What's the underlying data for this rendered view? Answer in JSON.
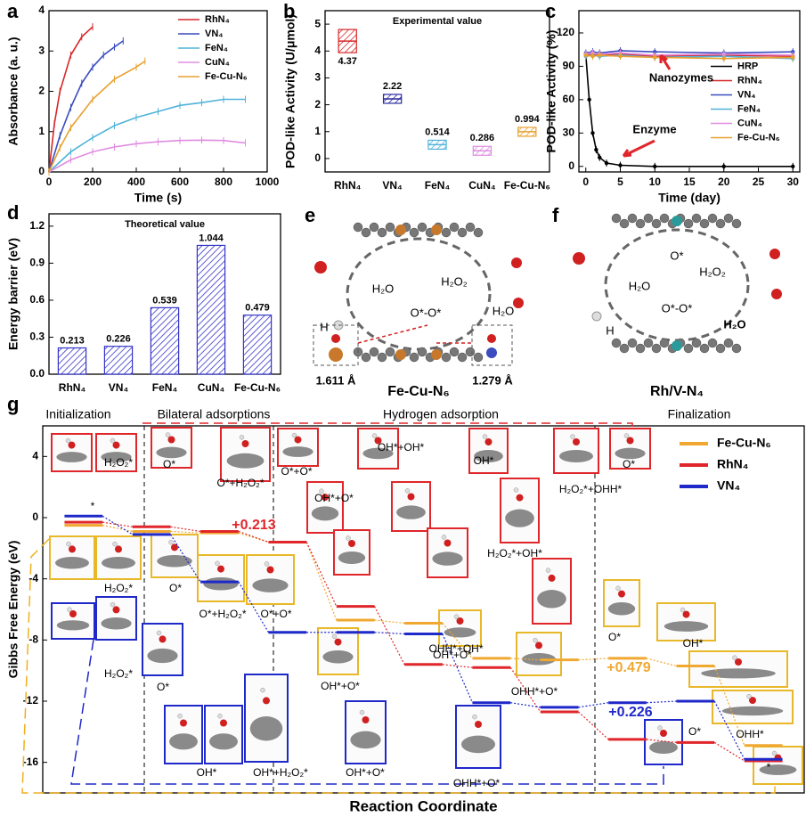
{
  "chart_data": [
    {
      "type": "line",
      "panel_label": "a",
      "xlabel": "Time (s)",
      "ylabel": "Absorbance (a. u.)",
      "xlim": [
        0,
        1000
      ],
      "xticks": [
        0,
        200,
        400,
        600,
        800,
        1000
      ],
      "ylim": [
        0,
        4
      ],
      "yticks": [
        0,
        1,
        2,
        3,
        4
      ],
      "legend": "upper right",
      "series": [
        {
          "name": "RhN₄",
          "color": "#d62728",
          "x": [
            0,
            25,
            50,
            100,
            150,
            200
          ],
          "values": [
            0,
            1.2,
            2.0,
            2.9,
            3.35,
            3.6
          ]
        },
        {
          "name": "VN₄",
          "color": "#3b4cc0",
          "x": [
            0,
            50,
            100,
            150,
            200,
            250,
            300,
            340
          ],
          "values": [
            0,
            0.9,
            1.6,
            2.2,
            2.6,
            2.9,
            3.1,
            3.25
          ]
        },
        {
          "name": "FeN₄",
          "color": "#4fb3d9",
          "x": [
            0,
            100,
            200,
            300,
            400,
            500,
            600,
            700,
            800,
            900
          ],
          "values": [
            0,
            0.5,
            0.85,
            1.15,
            1.35,
            1.5,
            1.65,
            1.72,
            1.8,
            1.8
          ]
        },
        {
          "name": "CuN₄",
          "color": "#e08de0",
          "x": [
            0,
            100,
            200,
            300,
            400,
            500,
            600,
            700,
            800,
            900
          ],
          "values": [
            0,
            0.3,
            0.5,
            0.62,
            0.7,
            0.75,
            0.78,
            0.79,
            0.78,
            0.72
          ]
        },
        {
          "name": "Fe-Cu-N₆",
          "color": "#e8a030",
          "x": [
            0,
            50,
            100,
            200,
            300,
            400,
            440
          ],
          "values": [
            0,
            0.6,
            1.1,
            1.8,
            2.3,
            2.6,
            2.75
          ]
        }
      ]
    },
    {
      "type": "box",
      "panel_label": "b",
      "title": "Experimental value",
      "ylabel": "POD-like Activity (U/μmol)",
      "categories": [
        "RhN₄",
        "VN₄",
        "FeN₄",
        "CuN₄",
        "Fe-Cu-N₆"
      ],
      "values": [
        4.37,
        2.22,
        0.514,
        0.286,
        0.994
      ],
      "colors": [
        "#d62728",
        "#2a2aa0",
        "#4fb3d9",
        "#e08de0",
        "#e8a030"
      ],
      "ylim": [
        -0.5,
        5.5
      ],
      "yticks": [
        0,
        1,
        2,
        3,
        4,
        5
      ]
    },
    {
      "type": "line",
      "panel_label": "c",
      "xlabel": "Time (day)",
      "ylabel": "POD-like Activity (%)",
      "xlim": [
        -1,
        31
      ],
      "xticks": [
        0,
        5,
        10,
        15,
        20,
        25,
        30
      ],
      "ylim": [
        -5,
        140
      ],
      "yticks": [
        0,
        30,
        60,
        90,
        120
      ],
      "legend": "center right",
      "markers": true,
      "annotations": [
        "Nanozymes",
        "Enzyme"
      ],
      "series": [
        {
          "name": "HRP",
          "color": "#000000",
          "x": [
            0,
            0.5,
            1,
            1.5,
            2,
            3,
            5,
            10,
            20,
            30
          ],
          "values": [
            100,
            60,
            30,
            15,
            8,
            3,
            1,
            0,
            0,
            0
          ]
        },
        {
          "name": "RhN₄",
          "color": "#d62728",
          "x": [
            0,
            1,
            2,
            5,
            10,
            20,
            30
          ],
          "values": [
            100,
            101,
            100,
            101,
            99,
            100,
            99
          ]
        },
        {
          "name": "VN₄",
          "color": "#3b4cc0",
          "x": [
            0,
            1,
            2,
            5,
            10,
            20,
            30
          ],
          "values": [
            102,
            103,
            102,
            104,
            103,
            102,
            103
          ]
        },
        {
          "name": "FeN₄",
          "color": "#4fb3d9",
          "x": [
            0,
            1,
            2,
            5,
            10,
            20,
            30
          ],
          "values": [
            99,
            100,
            99,
            100,
            98,
            99,
            97
          ]
        },
        {
          "name": "CuN₄",
          "color": "#e08de0",
          "x": [
            0,
            1,
            2,
            5,
            10,
            20,
            30
          ],
          "values": [
            101,
            102,
            101,
            102,
            100,
            101,
            100
          ]
        },
        {
          "name": "Fe-Cu-N₆",
          "color": "#e8a030",
          "x": [
            0,
            1,
            2,
            5,
            10,
            20,
            30
          ],
          "values": [
            100,
            99,
            100,
            99,
            98,
            97,
            98
          ]
        }
      ]
    },
    {
      "type": "bar",
      "panel_label": "d",
      "title": "Theoretical value",
      "ylabel": "Energy barrier (eV)",
      "categories": [
        "RhN₄",
        "VN₄",
        "FeN₄",
        "CuN₄",
        "Fe-Cu-N₆"
      ],
      "values": [
        0.213,
        0.226,
        0.539,
        1.044,
        0.479
      ],
      "color": "#3535c8",
      "ylim": [
        0,
        1.3
      ],
      "yticks": [
        {
          "value": 0,
          "label": "0.0"
        },
        0.3,
        0.6,
        0.9,
        1.2
      ]
    },
    {
      "type": "energy",
      "panel_label": "g",
      "xlabel": "Reaction Coordinate",
      "ylabel": "Gibbs Free Energy (eV)",
      "xlim": [
        -0.6,
        10.6
      ],
      "ylim": [
        -18,
        6
      ],
      "yticks": [
        4,
        0,
        -4,
        -8,
        -12,
        -16
      ],
      "legend": "upper right",
      "sections": [
        "Initialization",
        "Bilateral adsorptions",
        "Hydrogen adsorption",
        "Finalization"
      ],
      "annotations": [
        "+0.213",
        "+0.479",
        "+0.226"
      ],
      "state_labels": [
        "H₂O₂*",
        "O*",
        "O*+H₂O₂*",
        "O*+O*",
        "OH*+O*",
        "OH*+OH*",
        "OH*",
        "H₂O₂*+OH*",
        "H₂O₂*+OHH*",
        "O*",
        "OHH*+OH*",
        "H₂O₂*",
        "O*",
        "O*+H₂O₂*",
        "O*+O*",
        "OH*+O*",
        "OH*+O*",
        "OHH*+O*",
        "O*",
        "OH*",
        "OHH*",
        "*",
        "H₂O₂*",
        "O*",
        "OH*",
        "OH*+H₂O₂*",
        "OH*+O*",
        "OHH*+O*",
        "O*",
        "*"
      ],
      "series": [
        {
          "name": "Fe-Cu-N₆",
          "color": "#f0a830",
          "x": [
            0,
            1,
            2,
            3,
            4,
            5,
            6,
            7,
            8,
            9,
            10
          ],
          "values": [
            -0.5,
            -0.9,
            -1.0,
            -1.6,
            -6.7,
            -6.9,
            -9.2,
            -9.3,
            -9.2,
            -9.7,
            -14.9
          ]
        },
        {
          "name": "RhN₄",
          "color": "#e0262a",
          "x": [
            0,
            1,
            2,
            3,
            4,
            5,
            6,
            7,
            8,
            9,
            10
          ],
          "values": [
            -0.3,
            -0.6,
            -0.9,
            -1.6,
            -5.8,
            -9.6,
            -9.8,
            -12.7,
            -14.5,
            -14.7,
            -15.9
          ]
        },
        {
          "name": "VN₄",
          "color": "#1f28c8",
          "x": [
            0,
            1,
            2,
            3,
            4,
            5,
            6,
            7,
            8,
            9,
            10
          ],
          "values": [
            0.1,
            -1.1,
            -4.2,
            -7.5,
            -7.5,
            -7.6,
            -12.1,
            -12.4,
            -12.1,
            -12.0,
            -15.8
          ]
        }
      ]
    }
  ],
  "diagrams": [
    {
      "panel_label": "e",
      "title": "Fe-Cu-N₆",
      "labels": [
        "H₂O",
        "H₂O₂",
        "O*-O*",
        "H",
        "H₂O",
        "1.611 Å",
        "1.279 Å"
      ]
    },
    {
      "panel_label": "f",
      "title": "Rh/V-N₄",
      "labels": [
        "O*",
        "H₂O",
        "H₂O₂",
        "O*-O*",
        "H",
        "H₂O"
      ]
    }
  ]
}
